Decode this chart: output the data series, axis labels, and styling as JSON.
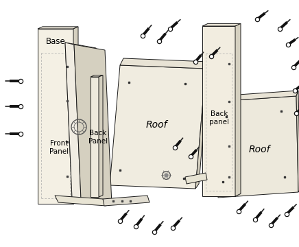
{
  "bg_color": "#ffffff",
  "line_color": "#1a1a1a",
  "fill_cream": "#f2ede0",
  "fill_light": "#e8e3d5",
  "fill_mid": "#d5d0c0",
  "fill_dark": "#c0bba8",
  "figsize": [
    4.36,
    3.6
  ],
  "dpi": 100,
  "labels": {
    "base": "Base",
    "front_panel": "Front\nPanel",
    "back_panel_left": "Back\nPanel",
    "roof_left": "Roof",
    "back_panel_right": "Back\npanel",
    "roof_right": "Roof"
  }
}
